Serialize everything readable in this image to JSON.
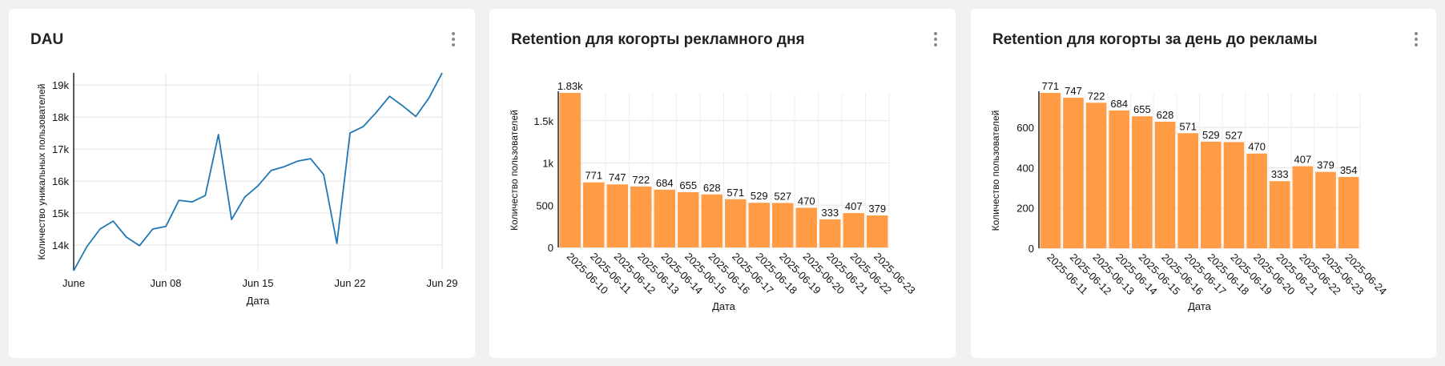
{
  "charts": [
    {
      "title": "DAU",
      "menu_icon": "kebab-vertical-icon",
      "chart_data": {
        "type": "line",
        "title": "DAU",
        "xlabel": "Дата",
        "ylabel": "Количество уникальных пользователей",
        "x": [
          "2025-06-01",
          "2025-06-02",
          "2025-06-03",
          "2025-06-04",
          "2025-06-05",
          "2025-06-06",
          "2025-06-07",
          "2025-06-08",
          "2025-06-09",
          "2025-06-10",
          "2025-06-11",
          "2025-06-12",
          "2025-06-13",
          "2025-06-14",
          "2025-06-15",
          "2025-06-16",
          "2025-06-17",
          "2025-06-18",
          "2025-06-19",
          "2025-06-20",
          "2025-06-21",
          "2025-06-22",
          "2025-06-23",
          "2025-06-24",
          "2025-06-25",
          "2025-06-26",
          "2025-06-27",
          "2025-06-28",
          "2025-06-29"
        ],
        "values": [
          13200,
          13950,
          14500,
          14750,
          14250,
          13980,
          14500,
          14580,
          15400,
          15350,
          15550,
          17450,
          14800,
          15500,
          15850,
          16330,
          16450,
          16620,
          16700,
          16200,
          14050,
          17500,
          17700,
          18150,
          18650,
          18350,
          18020,
          18600,
          19380
        ],
        "xticks": [
          "June",
          "Jun 08",
          "Jun 15",
          "Jun 22",
          "Jun 29"
        ],
        "yticks": [
          "14k",
          "15k",
          "16k",
          "17k",
          "18k",
          "19k"
        ],
        "ylim": [
          13200,
          19380
        ],
        "grid": true,
        "line_color": "#1f77b4"
      }
    },
    {
      "title": "Retention для когорты рекламного дня",
      "menu_icon": "kebab-vertical-icon",
      "chart_data": {
        "type": "bar",
        "title": "Retention для когорты рекламного дня",
        "xlabel": "Дата",
        "ylabel": "Количество пользователей",
        "categories": [
          "2025-06-10",
          "2025-06-11",
          "2025-06-12",
          "2025-06-13",
          "2025-06-14",
          "2025-06-15",
          "2025-06-16",
          "2025-06-17",
          "2025-06-18",
          "2025-06-19",
          "2025-06-20",
          "2025-06-21",
          "2025-06-22",
          "2025-06-23"
        ],
        "values": [
          1830,
          771,
          747,
          722,
          684,
          655,
          628,
          571,
          529,
          527,
          470,
          333,
          407,
          379
        ],
        "labels": [
          "1.83k",
          "771",
          "747",
          "722",
          "684",
          "655",
          "628",
          "571",
          "529",
          "527",
          "470",
          "333",
          "407",
          "379"
        ],
        "yticks": [
          "0",
          "500",
          "1k",
          "1.5k"
        ],
        "ylim": [
          0,
          1830
        ],
        "grid": true,
        "bar_color": "#ff9c45"
      }
    },
    {
      "title": "Retention для когорты за день до рекламы",
      "menu_icon": "kebab-vertical-icon",
      "chart_data": {
        "type": "bar",
        "title": "Retention для когорты за день до рекламы",
        "xlabel": "Дата",
        "ylabel": "Количество пользователей",
        "categories": [
          "2025-06-11",
          "2025-06-12",
          "2025-06-13",
          "2025-06-14",
          "2025-06-15",
          "2025-06-16",
          "2025-06-17",
          "2025-06-18",
          "2025-06-19",
          "2025-06-20",
          "2025-06-21",
          "2025-06-22",
          "2025-06-23",
          "2025-06-24"
        ],
        "values": [
          771,
          747,
          722,
          684,
          655,
          628,
          571,
          529,
          527,
          470,
          333,
          407,
          379,
          354
        ],
        "labels": [
          "771",
          "747",
          "722",
          "684",
          "655",
          "628",
          "571",
          "529",
          "527",
          "470",
          "333",
          "407",
          "379",
          "354"
        ],
        "yticks": [
          "0",
          "200",
          "400",
          "600"
        ],
        "ylim": [
          0,
          771
        ],
        "grid": true,
        "bar_color": "#ff9c45"
      }
    }
  ]
}
